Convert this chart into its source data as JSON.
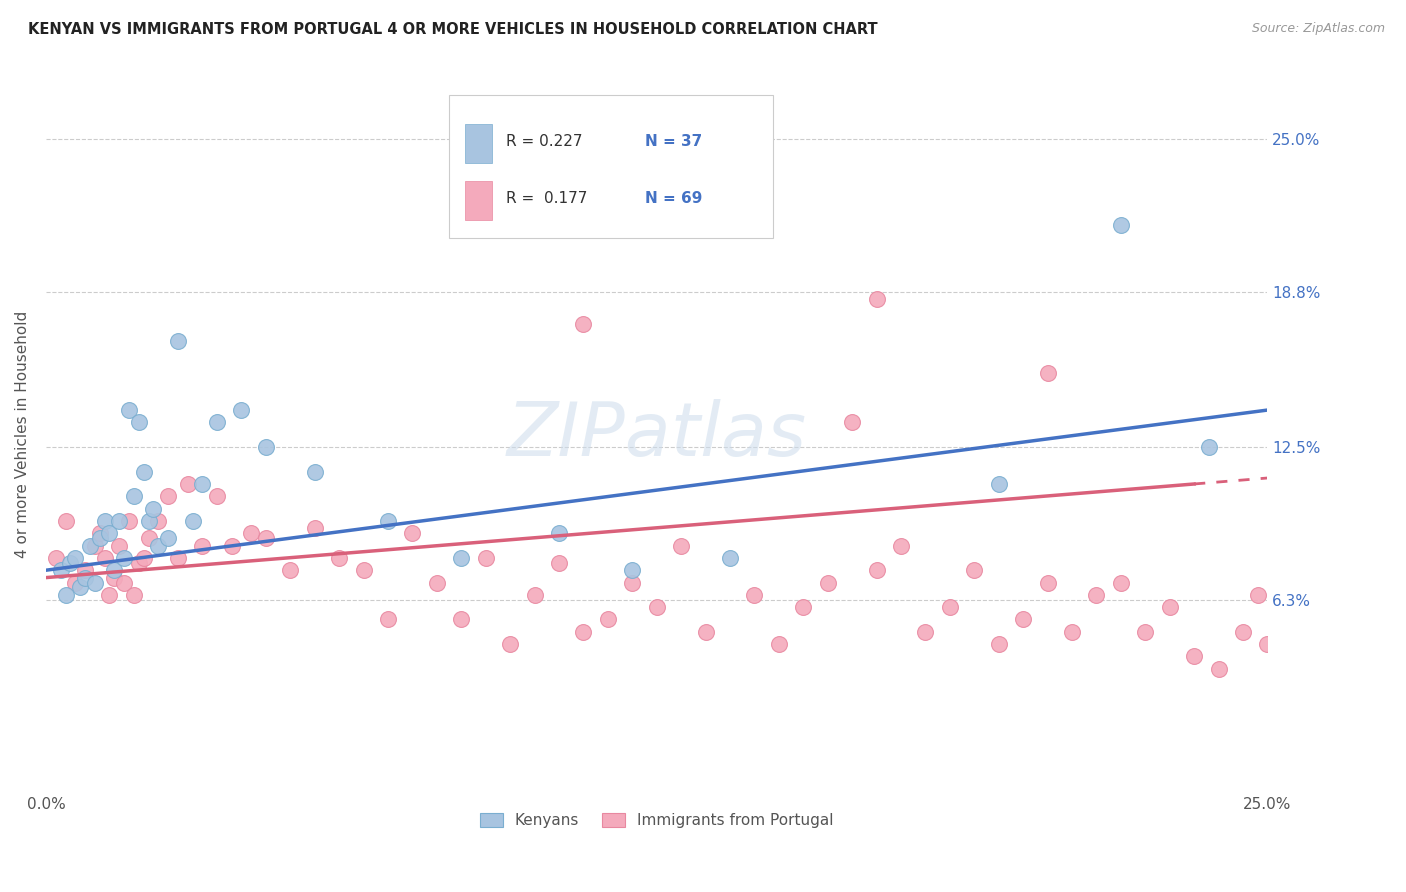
{
  "title": "KENYAN VS IMMIGRANTS FROM PORTUGAL 4 OR MORE VEHICLES IN HOUSEHOLD CORRELATION CHART",
  "source_text": "Source: ZipAtlas.com",
  "ylabel": "4 or more Vehicles in Household",
  "xlim": [
    0.0,
    25.0
  ],
  "ylim": [
    -1.5,
    27.5
  ],
  "ytick_labels": [
    "6.3%",
    "12.5%",
    "18.8%",
    "25.0%"
  ],
  "ytick_values": [
    6.3,
    12.5,
    18.8,
    25.0
  ],
  "grid_color": "#cccccc",
  "background_color": "#ffffff",
  "watermark": "ZIPatlas",
  "legend_R_kenyan": "0.227",
  "legend_N_kenyan": "37",
  "legend_R_portugal": "0.177",
  "legend_N_portugal": "69",
  "kenyan_color": "#a8c4e0",
  "portugal_color": "#f4aabc",
  "kenyan_edge_color": "#7aaed0",
  "portugal_edge_color": "#e888a0",
  "kenyan_line_color": "#4472c4",
  "portugal_line_color": "#d9607a",
  "legend_N_color": "#e05020",
  "legend_text_color": "#333333",
  "kenyan_x": [
    0.3,
    0.4,
    0.5,
    0.6,
    0.7,
    0.8,
    0.9,
    1.0,
    1.1,
    1.2,
    1.3,
    1.4,
    1.5,
    1.6,
    1.7,
    1.8,
    1.9,
    2.0,
    2.1,
    2.2,
    2.3,
    2.5,
    2.7,
    3.0,
    3.2,
    3.5,
    4.0,
    4.5,
    5.5,
    7.0,
    8.5,
    10.5,
    12.0,
    14.0,
    19.5,
    22.0,
    23.8
  ],
  "kenyan_y": [
    7.5,
    6.5,
    7.8,
    8.0,
    6.8,
    7.2,
    8.5,
    7.0,
    8.8,
    9.5,
    9.0,
    7.5,
    9.5,
    8.0,
    14.0,
    10.5,
    13.5,
    11.5,
    9.5,
    10.0,
    8.5,
    8.8,
    16.8,
    9.5,
    11.0,
    13.5,
    14.0,
    12.5,
    11.5,
    9.5,
    8.0,
    9.0,
    7.5,
    8.0,
    11.0,
    21.5,
    12.5
  ],
  "portugal_x": [
    0.2,
    0.4,
    0.6,
    0.8,
    1.0,
    1.1,
    1.2,
    1.3,
    1.4,
    1.5,
    1.6,
    1.7,
    1.8,
    1.9,
    2.0,
    2.1,
    2.3,
    2.5,
    2.7,
    2.9,
    3.2,
    3.5,
    3.8,
    4.2,
    4.5,
    5.0,
    5.5,
    6.0,
    6.5,
    7.0,
    7.5,
    8.0,
    8.5,
    9.0,
    9.5,
    10.0,
    10.5,
    11.0,
    11.5,
    12.0,
    12.5,
    13.0,
    13.5,
    14.5,
    15.0,
    15.5,
    16.0,
    17.0,
    17.5,
    18.0,
    18.5,
    19.0,
    19.5,
    20.0,
    20.5,
    21.0,
    21.5,
    22.0,
    22.5,
    23.0,
    23.5,
    24.0,
    24.5,
    24.8,
    25.0,
    20.5,
    17.0,
    16.5,
    11.0
  ],
  "portugal_y": [
    8.0,
    9.5,
    7.0,
    7.5,
    8.5,
    9.0,
    8.0,
    6.5,
    7.2,
    8.5,
    7.0,
    9.5,
    6.5,
    7.8,
    8.0,
    8.8,
    9.5,
    10.5,
    8.0,
    11.0,
    8.5,
    10.5,
    8.5,
    9.0,
    8.8,
    7.5,
    9.2,
    8.0,
    7.5,
    5.5,
    9.0,
    7.0,
    5.5,
    8.0,
    4.5,
    6.5,
    7.8,
    5.0,
    5.5,
    7.0,
    6.0,
    8.5,
    5.0,
    6.5,
    4.5,
    6.0,
    7.0,
    7.5,
    8.5,
    5.0,
    6.0,
    7.5,
    4.5,
    5.5,
    7.0,
    5.0,
    6.5,
    7.0,
    5.0,
    6.0,
    4.0,
    3.5,
    5.0,
    6.5,
    4.5,
    15.5,
    18.5,
    13.5,
    17.5
  ]
}
